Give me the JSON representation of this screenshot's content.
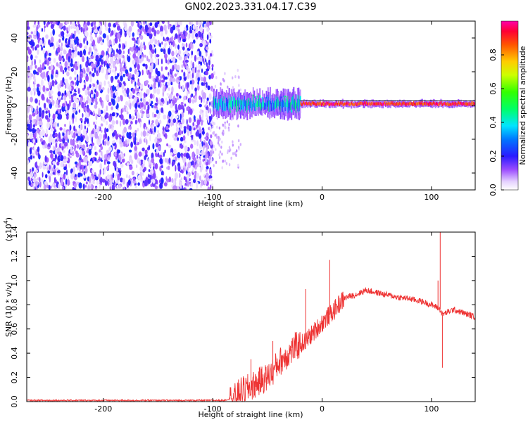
{
  "title": "GN02.2023.331.04.17.C39",
  "chart_data": [
    {
      "type": "heatmap",
      "xlabel": "Height of straight line (km)",
      "ylabel": "Frequency (Hz)",
      "xlim": [
        -270,
        140
      ],
      "ylim": [
        -50,
        50
      ],
      "x_ticks": [
        -200,
        -100,
        0,
        100
      ],
      "y_ticks": [
        -40,
        -20,
        0,
        20,
        40
      ],
      "colorbar": {
        "label": "Normalized spectral amplitude",
        "range": [
          0.0,
          1.0
        ],
        "ticks": [
          0.0,
          0.2,
          0.4,
          0.6,
          0.8
        ],
        "tick_labels": [
          "0.0",
          "0.2",
          "0.4",
          "0.6",
          "0.8"
        ]
      },
      "regions": [
        {
          "x_range": [
            -270,
            -100
          ],
          "freq_range": [
            -50,
            50
          ],
          "amplitude": "noise"
        },
        {
          "x_range": [
            -100,
            -20
          ],
          "freq_center": 1,
          "freq_halfwidth": 7,
          "amplitude": [
            0.2,
            0.5
          ]
        },
        {
          "x_range": [
            -20,
            140
          ],
          "freq_center": 1,
          "freq_halfwidth": 2,
          "amplitude": [
            0.8,
            1.0
          ]
        }
      ]
    },
    {
      "type": "line",
      "xlabel": "Height of straight line (km)",
      "ylabel": "SNR (10 * v/v)",
      "y_scale_label": "(x10",
      "y_scale_exp": "4",
      "y_scale_close": ")",
      "xlim": [
        -270,
        140
      ],
      "ylim": [
        0.0,
        1.4
      ],
      "x_ticks": [
        -200,
        -100,
        0,
        100
      ],
      "y_ticks": [
        0.0,
        0.2,
        0.4,
        0.6,
        0.8,
        1.0,
        1.2,
        1.4
      ],
      "y_tick_labels": [
        "0.0",
        "0.2",
        "0.4",
        "0.6",
        "0.8",
        "1.0",
        "1.2",
        "1.4"
      ],
      "color": "#ee3333",
      "series": [
        {
          "x": [
            -270,
            -200,
            -150,
            -100,
            -90,
            -80,
            -75,
            -70,
            -65,
            -60,
            -55,
            -50,
            -45,
            -40,
            -35,
            -30,
            -25,
            -20,
            -15,
            -10,
            -5,
            0,
            5,
            10,
            15,
            20,
            25,
            30,
            35,
            40,
            45,
            50,
            60,
            70,
            80,
            90,
            100,
            105,
            108,
            110,
            115,
            120,
            130,
            140
          ],
          "y": [
            0.01,
            0.01,
            0.01,
            0.01,
            0.01,
            0.03,
            0.08,
            0.1,
            0.12,
            0.15,
            0.18,
            0.2,
            0.25,
            0.32,
            0.36,
            0.4,
            0.45,
            0.47,
            0.5,
            0.55,
            0.6,
            0.65,
            0.7,
            0.74,
            0.8,
            0.85,
            0.87,
            0.88,
            0.9,
            0.92,
            0.91,
            0.9,
            0.88,
            0.86,
            0.85,
            0.83,
            0.8,
            0.78,
            0.76,
            0.72,
            0.74,
            0.76,
            0.73,
            0.7
          ]
        }
      ],
      "spikes": [
        {
          "x": 7,
          "y": 1.17
        },
        {
          "x": -15,
          "y": 0.93
        },
        {
          "x": 108,
          "y": 1.4
        },
        {
          "x": 110,
          "y": 0.28
        },
        {
          "x": 106,
          "y": 1.0
        },
        {
          "x": -65,
          "y": 0.35
        },
        {
          "x": -45,
          "y": 0.5
        }
      ]
    }
  ]
}
